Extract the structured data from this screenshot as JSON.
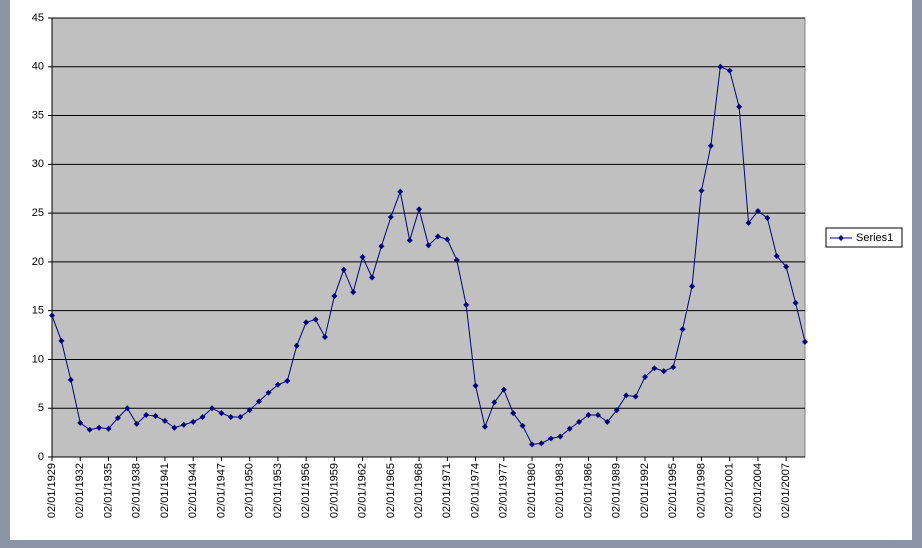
{
  "chart_data": {
    "type": "line",
    "categories": [
      "02/01/1929",
      null,
      null,
      "02/01/1932",
      null,
      null,
      "02/01/1935",
      null,
      null,
      "02/01/1938",
      null,
      null,
      "02/01/1941",
      null,
      null,
      "02/01/1944",
      null,
      null,
      "02/01/1947",
      null,
      null,
      "02/01/1950",
      null,
      null,
      "02/01/1953",
      null,
      null,
      "02/01/1956",
      null,
      null,
      "02/01/1959",
      null,
      null,
      "02/01/1962",
      null,
      null,
      "02/01/1965",
      null,
      null,
      "02/01/1968",
      null,
      null,
      "02/01/1971",
      null,
      null,
      "02/01/1974",
      null,
      null,
      "02/01/1977",
      null,
      null,
      "02/01/1980",
      null,
      null,
      "02/01/1983",
      null,
      null,
      "02/01/1986",
      null,
      null,
      "02/01/1989",
      null,
      null,
      "02/01/1992",
      null,
      null,
      "02/01/1995",
      null,
      null,
      "02/01/1998",
      null,
      null,
      "02/01/2001",
      null,
      null,
      "02/01/2004",
      null,
      null,
      "02/01/2007",
      null,
      null
    ],
    "series": [
      {
        "name": "Series1",
        "color": "#000080",
        "values": [
          14.5,
          11.9,
          7.9,
          3.5,
          2.8,
          3.0,
          2.9,
          4.0,
          5.0,
          3.4,
          4.3,
          4.2,
          3.7,
          3.0,
          3.3,
          3.6,
          4.1,
          5.0,
          4.5,
          4.1,
          4.1,
          4.8,
          5.7,
          6.6,
          7.4,
          7.8,
          11.4,
          13.8,
          14.1,
          12.3,
          16.5,
          19.2,
          16.9,
          20.5,
          18.4,
          21.6,
          24.6,
          27.2,
          22.2,
          25.4,
          21.7,
          22.6,
          22.3,
          20.2,
          15.6,
          7.3,
          3.1,
          5.6,
          6.9,
          4.5,
          3.2,
          1.3,
          1.4,
          1.9,
          2.1,
          2.9,
          3.6,
          4.3,
          4.3,
          3.6,
          4.8,
          6.3,
          6.2,
          8.2,
          9.1,
          8.8,
          9.2,
          13.1,
          17.5,
          27.3,
          31.9,
          40.0,
          39.6,
          35.9,
          24.0,
          25.2,
          24.5,
          20.6,
          19.5,
          15.8,
          11.8
        ]
      }
    ],
    "ylim": [
      0,
      45
    ],
    "yticks": [
      0,
      5,
      10,
      15,
      20,
      25,
      30,
      35,
      40,
      45
    ],
    "grid": true,
    "legend": "right",
    "plot_background": "#c0c0c0"
  }
}
